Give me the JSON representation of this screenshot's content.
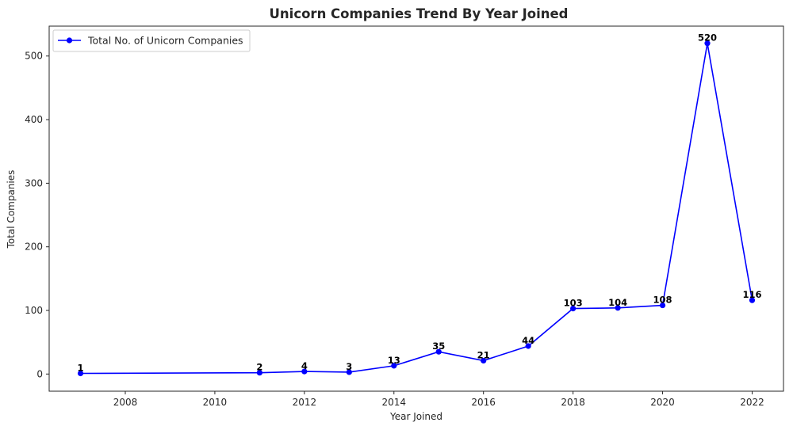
{
  "chart_data": {
    "type": "line",
    "title": "Unicorn Companies Trend By Year Joined",
    "xlabel": "Year Joined",
    "ylabel": "Total Companies",
    "xlim": [
      2006.3,
      2022.7
    ],
    "ylim": [
      -27,
      547
    ],
    "xticks": [
      2008,
      2010,
      2012,
      2014,
      2016,
      2018,
      2020,
      2022
    ],
    "yticks": [
      0,
      100,
      200,
      300,
      400,
      500
    ],
    "grid": false,
    "legend": {
      "position": "top-left"
    },
    "series": [
      {
        "name": "Total No. of Unicorn Companies",
        "color": "#0000ff",
        "marker": "circle",
        "x": [
          2007,
          2011,
          2012,
          2013,
          2014,
          2015,
          2016,
          2017,
          2018,
          2019,
          2020,
          2021,
          2022
        ],
        "y": [
          1,
          2,
          4,
          3,
          13,
          35,
          21,
          44,
          103,
          104,
          108,
          520,
          116
        ]
      }
    ]
  }
}
